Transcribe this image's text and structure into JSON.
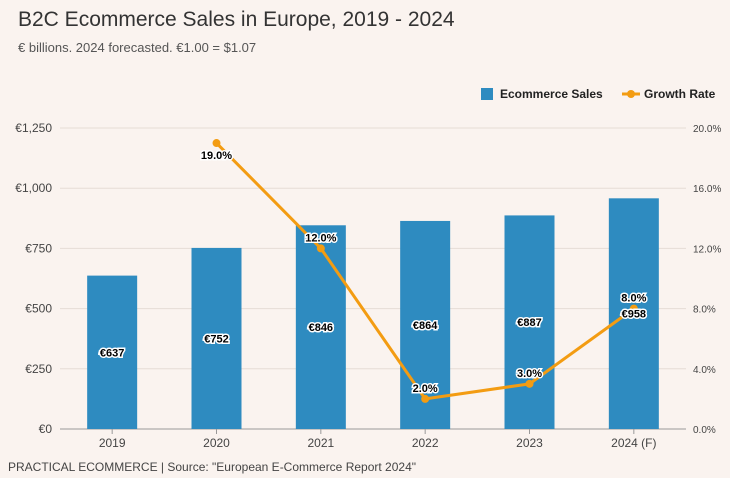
{
  "header": {
    "title": "B2C Ecommerce Sales in Europe, 2019 - 2024",
    "subtitle": "€ billions. 2024 forecasted. €1.00 = $1.07"
  },
  "footer": {
    "source": "PRACTICAL ECOMMERCE | Source: \"European E-Commerce Report 2024\""
  },
  "chart_data": {
    "type": "bar",
    "categories": [
      "2019",
      "2020",
      "2021",
      "2022",
      "2023",
      "2024 (F)"
    ],
    "series": [
      {
        "name": "Ecommerce Sales",
        "type": "bar",
        "axis": "left",
        "color": "#2e8bc0",
        "values": [
          637,
          752,
          846,
          864,
          887,
          958
        ],
        "labels": [
          "€637",
          "€752",
          "€846",
          "€864",
          "€887",
          "€958"
        ]
      },
      {
        "name": "Growth Rate",
        "type": "line",
        "axis": "right",
        "color": "#f39c12",
        "values": [
          null,
          19.0,
          12.0,
          2.0,
          3.0,
          8.0
        ],
        "labels": [
          null,
          "19.0%",
          "12.0%",
          "2.0%",
          "3.0%",
          "8.0%"
        ]
      }
    ],
    "y_left": {
      "ylim": [
        0,
        1250
      ],
      "ticks": [
        0,
        250,
        500,
        750,
        1000,
        1250
      ],
      "tick_labels": [
        "€0",
        "€250",
        "€500",
        "€750",
        "€1,000",
        "€1,250"
      ]
    },
    "y_right": {
      "ylim": [
        0,
        20
      ],
      "ticks": [
        0,
        4,
        8,
        12,
        16,
        20
      ],
      "tick_labels": [
        "0.0%",
        "4.0%",
        "8.0%",
        "12.0%",
        "16.0%",
        "20.0%"
      ]
    },
    "grid": true,
    "legend_position": "top-right"
  }
}
